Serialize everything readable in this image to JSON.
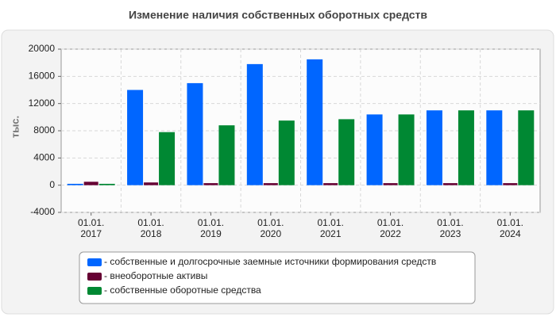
{
  "chart_data": {
    "type": "bar",
    "title": "Изменение наличия собственных оборотных средств",
    "ylabel": "тыс.",
    "categories": [
      [
        "01.01.",
        "2017"
      ],
      [
        "01.01.",
        "2018"
      ],
      [
        "01.01.",
        "2019"
      ],
      [
        "01.01.",
        "2020"
      ],
      [
        "01.01.",
        "2021"
      ],
      [
        "01.01.",
        "2022"
      ],
      [
        "01.01.",
        "2023"
      ],
      [
        "01.01.",
        "2024"
      ]
    ],
    "series": [
      {
        "name": "- собственные и долгосрочные заемные источники формирования средств",
        "color": "#0066ff",
        "values": [
          200,
          14000,
          15000,
          17800,
          18500,
          10400,
          11000,
          11000
        ]
      },
      {
        "name": "- внеоборотные активы",
        "color": "#660033",
        "values": [
          500,
          400,
          300,
          300,
          300,
          300,
          300,
          300
        ]
      },
      {
        "name": "- собственные оборотные средства",
        "color": "#008833",
        "values": [
          200,
          7800,
          8800,
          9500,
          9700,
          10400,
          11000,
          11000
        ]
      }
    ],
    "ylim": [
      -4000,
      20000
    ],
    "yticks": [
      -4000,
      0,
      4000,
      8000,
      12000,
      16000,
      20000
    ],
    "grid": true
  }
}
